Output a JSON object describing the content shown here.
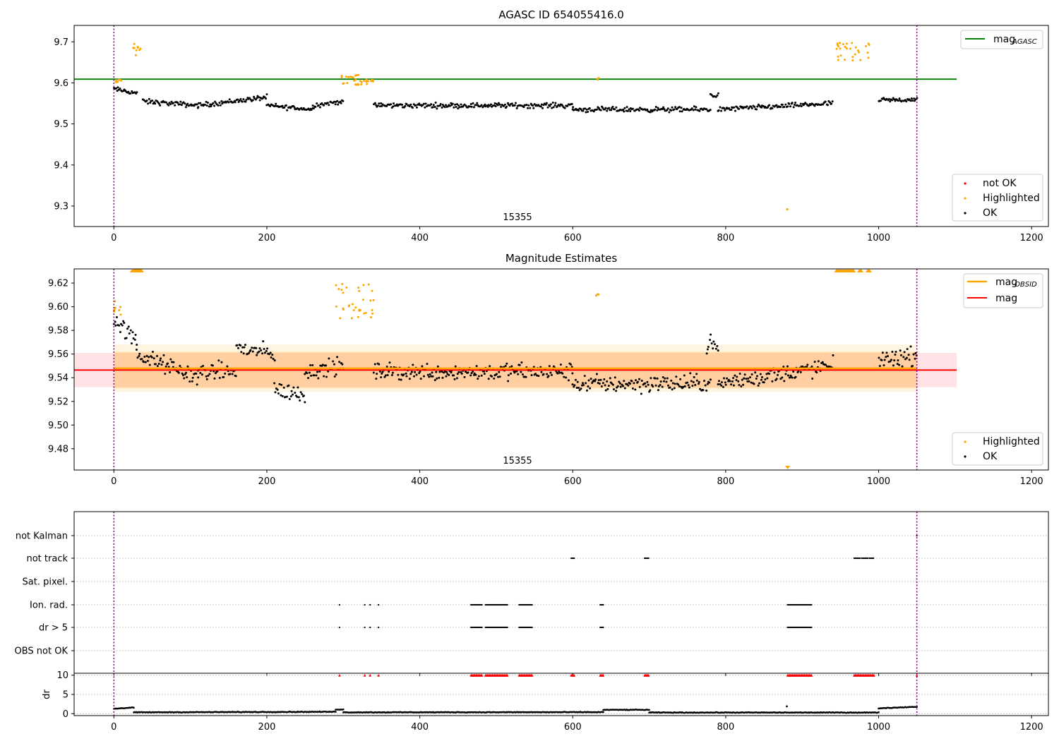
{
  "chart_data": [
    {
      "type": "scatter",
      "title": "AGASC ID 654055416.0",
      "xlim": [
        -52,
        1222
      ],
      "ylim": [
        9.25,
        9.74
      ],
      "xticks": [
        0,
        200,
        400,
        600,
        800,
        1000,
        1200
      ],
      "yticks": [
        9.3,
        9.4,
        9.5,
        9.6,
        9.7
      ],
      "grid": false,
      "obsid_label": "15355",
      "obsid_label_x": 525,
      "vlines": [
        0,
        1050
      ],
      "hline": {
        "name": "mag_AGASC",
        "label_main": "mag",
        "label_sub": "AGASC",
        "y": 9.609,
        "x_range": [
          -52,
          1102
        ],
        "color": "#008000"
      },
      "series_model": {
        "ok": {
          "name": "OK",
          "color": "#000000",
          "segments": [
            {
              "x": [
                0,
                30
              ],
              "y": [
                9.585,
                9.575
              ]
            },
            {
              "x": [
                38,
                110
              ],
              "y": [
                9.555,
                9.545
              ]
            },
            {
              "x": [
                110,
                200
              ],
              "y": [
                9.545,
                9.565
              ]
            },
            {
              "x": [
                200,
                260
              ],
              "y": [
                9.545,
                9.535
              ]
            },
            {
              "x": [
                260,
                300
              ],
              "y": [
                9.545,
                9.555
              ]
            },
            {
              "x": [
                340,
                600
              ],
              "y": [
                9.545,
                9.545
              ]
            },
            {
              "x": [
                600,
                780
              ],
              "y": [
                9.535,
                9.535
              ]
            },
            {
              "x": [
                780,
                790
              ],
              "y": [
                9.57,
                9.57
              ]
            },
            {
              "x": [
                790,
                940
              ],
              "y": [
                9.535,
                9.55
              ]
            },
            {
              "x": [
                1000,
                1050
              ],
              "y": [
                9.557,
                9.56
              ]
            }
          ],
          "noise": 0.009
        },
        "highlighted": {
          "name": "Highlighted",
          "color": "#ffa500",
          "clusters": [
            {
              "x": [
                0,
                10
              ],
              "y": [
                9.598,
                9.608
              ]
            },
            {
              "x": [
                24,
                38
              ],
              "y": [
                9.665,
                9.695
              ]
            },
            {
              "x": [
                290,
                340
              ],
              "y": [
                9.595,
                9.62
              ]
            },
            {
              "x": [
                630,
                635
              ],
              "y": [
                9.608,
                9.612
              ]
            },
            {
              "x": [
                880,
                882
              ],
              "y": [
                9.292,
                9.292
              ]
            },
            {
              "x": [
                945,
                990
              ],
              "y": [
                9.65,
                9.7
              ]
            }
          ]
        },
        "not_ok": {
          "name": "not OK",
          "color": "#ff0000"
        }
      },
      "legends": [
        {
          "placement": "upper right",
          "entries": [
            {
              "label": "mag",
              "sub": "AGASC",
              "color": "#008000",
              "kind": "line"
            }
          ]
        },
        {
          "placement": "lower right",
          "entries": [
            {
              "label": "not OK",
              "color": "#ff0000",
              "kind": "dot"
            },
            {
              "label": "Highlighted",
              "color": "#ffa500",
              "kind": "dot"
            },
            {
              "label": "OK",
              "color": "#000000",
              "kind": "dot"
            }
          ]
        }
      ]
    },
    {
      "type": "scatter",
      "title": "Magnitude Estimates",
      "xlim": [
        -52,
        1222
      ],
      "ylim": [
        9.462,
        9.632
      ],
      "xticks": [
        0,
        200,
        400,
        600,
        800,
        1000,
        1200
      ],
      "yticks": [
        9.48,
        9.5,
        9.52,
        9.54,
        9.56,
        9.58,
        9.6,
        9.62
      ],
      "grid": false,
      "obsid_label": "15355",
      "obsid_label_x": 525,
      "vlines": [
        0,
        1050
      ],
      "mag_line": {
        "name": "mag",
        "y": 9.5465,
        "x_range": [
          -52,
          1102
        ],
        "color": "#ff0000",
        "band": [
          9.532,
          9.561
        ],
        "band_color": "#ffb6c1"
      },
      "mag_obsid_line": {
        "name": "mag_OBSID",
        "label_main": "mag",
        "label_sub": "OBSID",
        "y": 9.548,
        "x_range": [
          0,
          1050
        ],
        "color": "#ffa500",
        "band1": [
          9.531,
          9.562
        ],
        "band2": [
          9.528,
          9.568
        ]
      },
      "series_model": {
        "ok": {
          "name": "OK",
          "color": "#000000",
          "segments": [
            {
              "x": [
                0,
                30
              ],
              "y": [
                9.59,
                9.57
              ]
            },
            {
              "x": [
                30,
                110
              ],
              "y": [
                9.56,
                9.54
              ]
            },
            {
              "x": [
                110,
                160
              ],
              "y": [
                9.545,
                9.545
              ]
            },
            {
              "x": [
                160,
                210
              ],
              "y": [
                9.565,
                9.56
              ]
            },
            {
              "x": [
                210,
                250
              ],
              "y": [
                9.53,
                9.525
              ]
            },
            {
              "x": [
                250,
                300
              ],
              "y": [
                9.545,
                9.55
              ]
            },
            {
              "x": [
                340,
                600
              ],
              "y": [
                9.545,
                9.545
              ]
            },
            {
              "x": [
                600,
                780
              ],
              "y": [
                9.535,
                9.535
              ]
            },
            {
              "x": [
                775,
                790
              ],
              "y": [
                9.57,
                9.565
              ]
            },
            {
              "x": [
                790,
                940
              ],
              "y": [
                9.535,
                9.55
              ]
            },
            {
              "x": [
                1000,
                1050
              ],
              "y": [
                9.556,
                9.558
              ]
            }
          ],
          "noise": 0.011
        },
        "highlighted": {
          "name": "Highlighted",
          "color": "#ffa500",
          "clusters": [
            {
              "x": [
                0,
                10
              ],
              "y": [
                9.593,
                9.607
              ]
            },
            {
              "x": [
                290,
                340
              ],
              "y": [
                9.59,
                9.62
              ]
            },
            {
              "x": [
                630,
                635
              ],
              "y": [
                9.609,
                9.611
              ]
            }
          ],
          "clipped_top_x": [
            24,
            26,
            27,
            28,
            29,
            30,
            31,
            32,
            33,
            34,
            35,
            36,
            945,
            947,
            949,
            951,
            953,
            955,
            957,
            959,
            961,
            963,
            965,
            967,
            975,
            977,
            986,
            988
          ],
          "clipped_bottom_x": [
            881
          ]
        }
      },
      "legends": [
        {
          "placement": "upper right",
          "entries": [
            {
              "label": "mag",
              "sub": "OBSID",
              "color": "#ffa500",
              "kind": "line"
            },
            {
              "label": "mag",
              "color": "#ff0000",
              "kind": "line"
            }
          ]
        },
        {
          "placement": "lower right",
          "entries": [
            {
              "label": "Highlighted",
              "color": "#ffa500",
              "kind": "dot"
            },
            {
              "label": "OK",
              "color": "#000000",
              "kind": "dot"
            }
          ]
        }
      ]
    },
    {
      "type": "scatter",
      "title": "",
      "xlim": [
        -52,
        1222
      ],
      "categories": [
        "not Kalman",
        "not track",
        "Sat. pixel.",
        "Ion. rad.",
        "dr > 5",
        "OBS not OK"
      ],
      "vlines": [
        0,
        1050
      ],
      "flags": {
        "not Kalman": [
          [
            1050,
            1050
          ]
        ],
        "not track": [
          [
            598,
            603
          ],
          [
            694,
            700
          ],
          [
            968,
            976
          ],
          [
            978,
            986
          ],
          [
            988,
            994
          ]
        ],
        "Sat. pixel.": [],
        "Ion. rad.": [
          [
            295,
            295
          ],
          [
            328,
            328
          ],
          [
            335,
            335
          ],
          [
            346,
            346
          ],
          [
            467,
            482
          ],
          [
            486,
            515
          ],
          [
            530,
            548
          ],
          [
            636,
            640
          ],
          [
            881,
            913
          ]
        ],
        "dr > 5": [
          [
            295,
            295
          ],
          [
            328,
            328
          ],
          [
            335,
            335
          ],
          [
            346,
            346
          ],
          [
            467,
            482
          ],
          [
            486,
            515
          ],
          [
            530,
            548
          ],
          [
            636,
            640
          ],
          [
            881,
            913
          ]
        ],
        "OBS not OK": []
      }
    },
    {
      "type": "scatter",
      "title": "",
      "ylabel": "dr",
      "xlim": [
        -52,
        1222
      ],
      "ylim": [
        -0.5,
        10.5
      ],
      "xticks": [
        0,
        200,
        400,
        600,
        800,
        1000,
        1200
      ],
      "yticks": [
        0,
        5,
        10
      ],
      "vlines": [
        0,
        1050
      ],
      "dr_model": {
        "segments": [
          {
            "x": [
              0,
              26
            ],
            "y": [
              1.3,
              1.6
            ]
          },
          {
            "x": [
              26,
              290
            ],
            "y": [
              0.35,
              0.5
            ]
          },
          {
            "x": [
              290,
              300
            ],
            "y": [
              1.1,
              1.1
            ]
          },
          {
            "x": [
              300,
              640
            ],
            "y": [
              0.35,
              0.4
            ]
          },
          {
            "x": [
              640,
              700
            ],
            "y": [
              1.0,
              1.0
            ]
          },
          {
            "x": [
              700,
              1000
            ],
            "y": [
              0.3,
              0.3
            ]
          },
          {
            "x": [
              1000,
              1050
            ],
            "y": [
              1.4,
              1.8
            ]
          }
        ],
        "noise": 0.12,
        "outliers": [
          [
            880,
            1.9
          ]
        ],
        "clipped_top_color": "#ff0000",
        "clipped_top_ranges": [
          [
            295,
            295
          ],
          [
            328,
            328
          ],
          [
            335,
            335
          ],
          [
            346,
            346
          ],
          [
            467,
            482
          ],
          [
            486,
            515
          ],
          [
            530,
            548
          ],
          [
            598,
            603
          ],
          [
            636,
            640
          ],
          [
            694,
            700
          ],
          [
            881,
            913
          ],
          [
            968,
            994
          ],
          [
            1050,
            1050
          ]
        ]
      }
    }
  ]
}
